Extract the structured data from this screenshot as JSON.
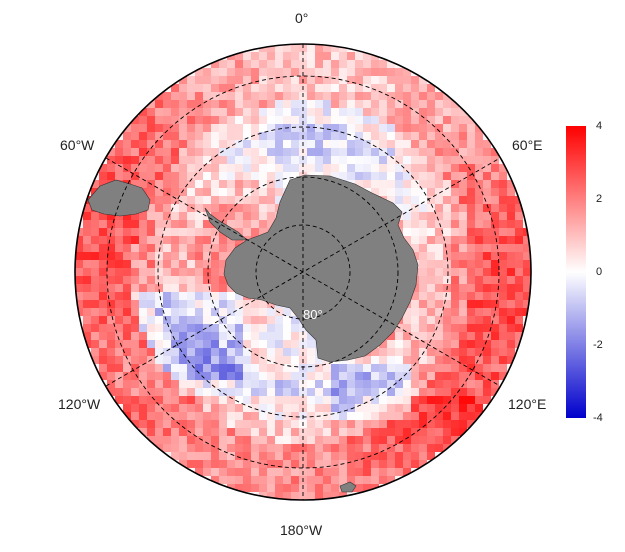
{
  "map": {
    "projection": "south-polar-stereographic",
    "land_color": "#808080",
    "ocean_fill": "diverging anomaly field",
    "longitude_labels": {
      "top": "0°",
      "upper_right": "60°E",
      "lower_right": "120°E",
      "bottom": "180°W",
      "lower_left": "120°W",
      "upper_left": "60°W"
    },
    "latitude_label": "80°",
    "graticule": "dashed"
  },
  "colorbar": {
    "min": -4,
    "max": 4,
    "ticks": [
      "4",
      "2",
      "0",
      "-2",
      "-4"
    ],
    "colors": {
      "low": "#0000cc",
      "mid": "#ffffff",
      "high": "#ff0000"
    }
  }
}
